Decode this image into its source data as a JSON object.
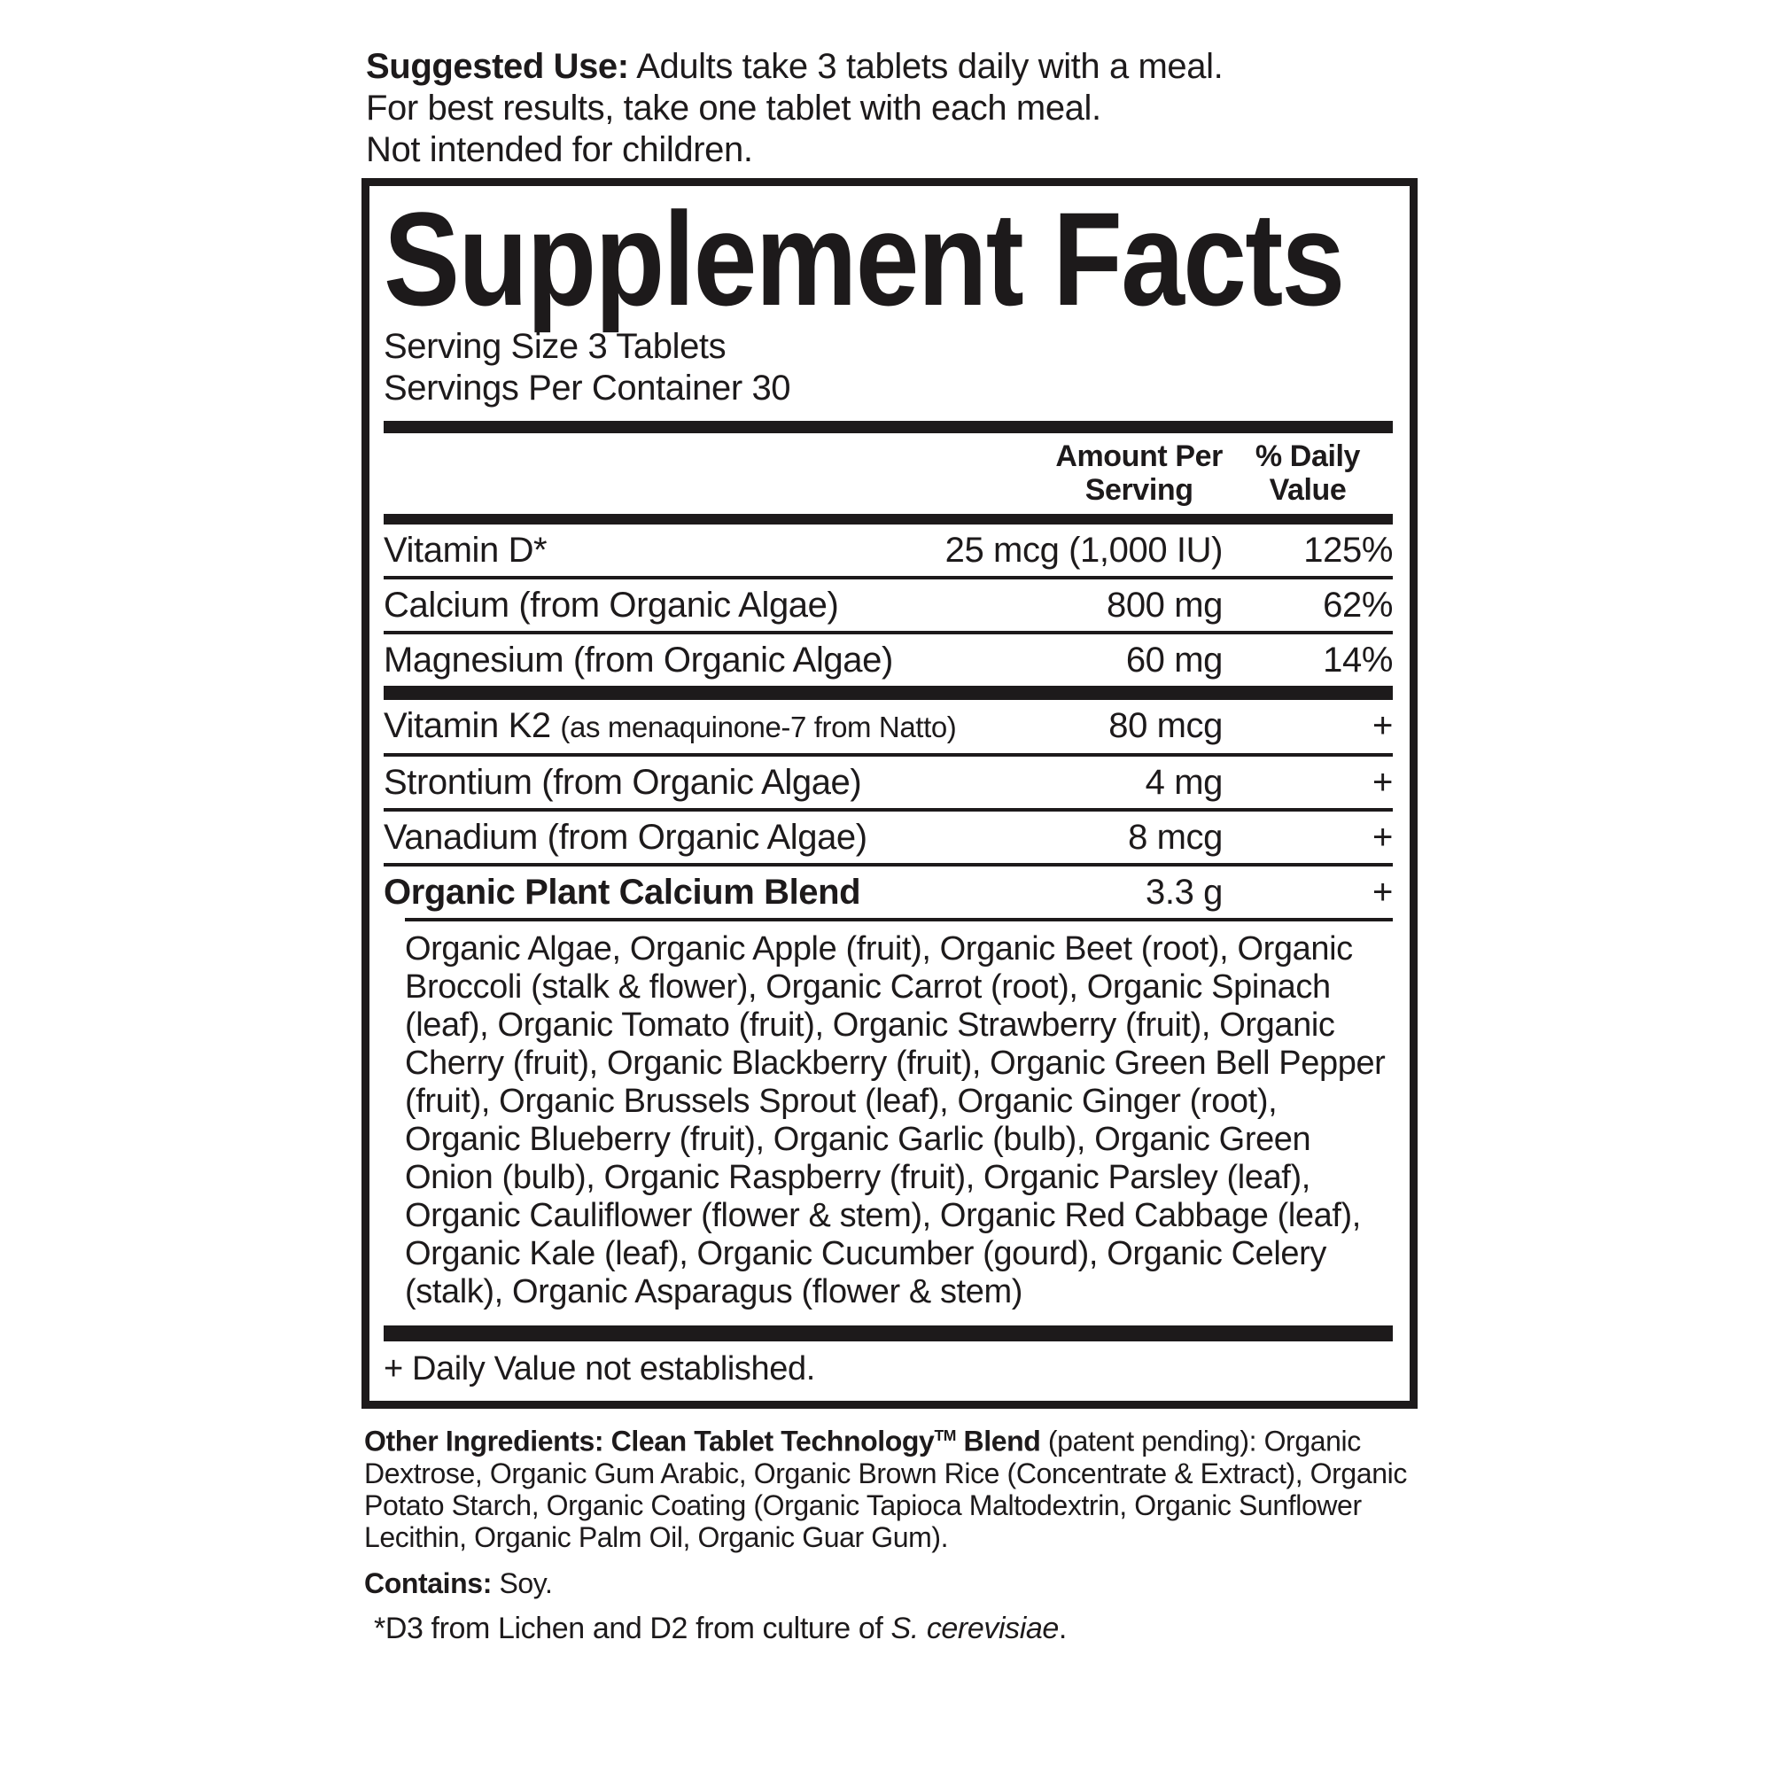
{
  "page": {
    "background": "#ffffff",
    "text_color": "#1d1a1b"
  },
  "suggested_use": {
    "label": "Suggested Use:",
    "line1_rest": " Adults take 3 tablets daily with a meal.",
    "line2": "For best results, take one tablet with each meal.",
    "line3": "Not intended for children."
  },
  "facts": {
    "title": "Supplement Facts",
    "serving_size": "Serving Size 3 Tablets",
    "servings_per_container": "Servings Per Container 30",
    "header": {
      "amount_line1": "Amount Per",
      "amount_line2": "Serving",
      "dv_line1": "% Daily",
      "dv_line2": "Value"
    },
    "rows": [
      {
        "name": "Vitamin D*",
        "amount": "25 mcg (1,000 IU)",
        "dv": "125%"
      },
      {
        "name": "Calcium (from Organic Algae)",
        "amount": "800 mg",
        "dv": "62%"
      },
      {
        "name": "Magnesium (from Organic Algae)",
        "amount": "60 mg",
        "dv": "14%"
      },
      {
        "name": "Vitamin K2",
        "note": "(as menaquinone-7 from Natto)",
        "amount": "80 mcg",
        "dv": "+"
      },
      {
        "name": "Strontium (from Organic Algae)",
        "amount": "4 mg",
        "dv": "+"
      },
      {
        "name": "Vanadium (from Organic Algae)",
        "amount": "8 mcg",
        "dv": "+"
      },
      {
        "name": "Organic Plant Calcium Blend",
        "amount": "3.3 g",
        "dv": "+"
      }
    ],
    "blend_ingredients": "Organic Algae, Organic Apple (fruit), Organic Beet (root), Organic Broccoli (stalk & flower), Organic Carrot (root), Organic Spinach (leaf), Organic Tomato (fruit), Organic Strawberry (fruit), Organic Cherry (fruit), Organic Blackberry (fruit), Organic Green Bell Pepper (fruit), Organic Brussels Sprout (leaf), Organic Ginger (root), Organic Blueberry (fruit), Organic Garlic (bulb), Organic Green Onion (bulb), Organic Raspberry (fruit), Organic Parsley (leaf), Organic Cauliflower (flower & stem), Organic Red Cabbage (leaf), Organic Kale (leaf), Organic Cucumber (gourd), Organic Celery (stalk), Organic Asparagus (flower & stem)",
    "dv_footnote": "+ Daily Value not established."
  },
  "other_ingredients": {
    "label": "Other Ingredients: ",
    "blend_name": "Clean Tablet Technology",
    "tm": "TM",
    "blend_name2": " Blend ",
    "rest": "(patent pending): Organic Dextrose, Organic Gum Arabic, Organic Brown Rice (Concentrate & Extract), Organic Potato Starch, Organic Coating (Organic Tapioca Maltodextrin, Organic Sunflower Lecithin, Organic Palm Oil, Organic Guar Gum)."
  },
  "contains": {
    "label": "Contains:",
    "text": " Soy."
  },
  "footnote": {
    "prefix": "*D3 from Lichen and D2 from culture of ",
    "species": "S. cerevisiae",
    "suffix": "."
  }
}
